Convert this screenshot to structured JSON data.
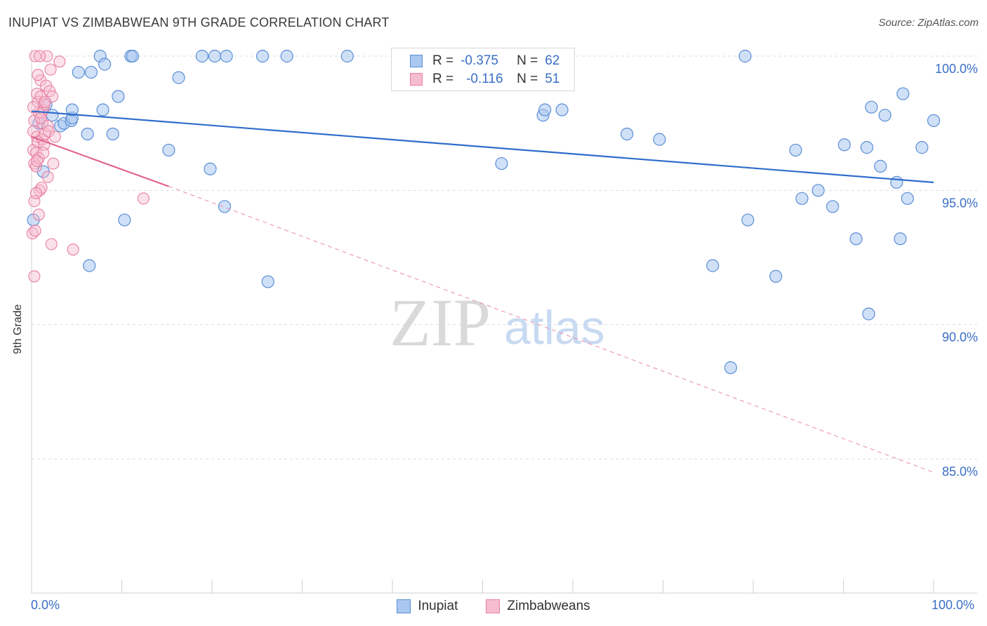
{
  "title": "INUPIAT VS ZIMBABWEAN 9TH GRADE CORRELATION CHART",
  "source": "Source: ZipAtlas.com",
  "legend_top": {
    "row1": {
      "r_label": "R =",
      "r_value": "-0.375",
      "n_label": "N =",
      "n_value": "62"
    },
    "row2": {
      "r_label": "R =",
      "r_value": "-0.116",
      "n_label": "N =",
      "n_value": "51"
    }
  },
  "legend_bottom": {
    "series1": "Inupiat",
    "series2": "Zimbabweans"
  },
  "x_tick_left": "0.0%",
  "x_tick_right": "100.0%",
  "colors": {
    "blue": "#5b8fd6",
    "blue_fill": "#a9c7f0",
    "pink": "#e87fa3",
    "pink_fill": "#f6bccf",
    "axis_text": "#3a6fc6"
  },
  "chart_data": {
    "type": "scatter",
    "title": "INUPIAT VS ZIMBABWEAN 9TH GRADE CORRELATION CHART",
    "ylabel": "9th Grade",
    "xlabel": "",
    "xlim": [
      0,
      100
    ],
    "ylim": [
      80.5,
      101.5
    ],
    "y_ticks": [
      {
        "value": 100,
        "label": "100.0%"
      },
      {
        "value": 95,
        "label": "95.0%"
      },
      {
        "value": 90,
        "label": "90.0%"
      },
      {
        "value": 85,
        "label": "85.0%"
      }
    ],
    "series": [
      {
        "name": "Inupiat",
        "r": -0.375,
        "n": 62,
        "trend": {
          "x0": 0,
          "y0": 97.95,
          "x1": 100,
          "y1": 95.3
        },
        "points": [
          [
            0.2,
            93.9
          ],
          [
            0.8,
            97.5
          ],
          [
            1.3,
            95.7
          ],
          [
            1.6,
            98.2
          ],
          [
            2.3,
            97.8
          ],
          [
            3.2,
            97.4
          ],
          [
            3.6,
            97.5
          ],
          [
            4.4,
            97.6
          ],
          [
            4.5,
            97.7
          ],
          [
            4.5,
            98.0
          ],
          [
            5.2,
            99.4
          ],
          [
            6.2,
            97.1
          ],
          [
            6.4,
            92.2
          ],
          [
            6.6,
            99.4
          ],
          [
            7.6,
            100.0
          ],
          [
            7.9,
            98.0
          ],
          [
            8.1,
            99.7
          ],
          [
            9.0,
            97.1
          ],
          [
            9.6,
            98.5
          ],
          [
            10.3,
            93.9
          ],
          [
            11.0,
            100.0
          ],
          [
            11.2,
            100.0
          ],
          [
            15.2,
            96.5
          ],
          [
            16.3,
            99.2
          ],
          [
            18.9,
            100.0
          ],
          [
            19.8,
            95.8
          ],
          [
            20.3,
            100.0
          ],
          [
            21.4,
            94.4
          ],
          [
            21.6,
            100.0
          ],
          [
            25.6,
            100.0
          ],
          [
            26.2,
            91.6
          ],
          [
            28.3,
            100.0
          ],
          [
            35.0,
            100.0
          ],
          [
            47.2,
            100.0
          ],
          [
            52.1,
            96.0
          ],
          [
            56.7,
            97.8
          ],
          [
            56.9,
            98.0
          ],
          [
            58.8,
            98.0
          ],
          [
            66.0,
            97.1
          ],
          [
            69.6,
            96.9
          ],
          [
            75.5,
            92.2
          ],
          [
            79.1,
            100.0
          ],
          [
            79.4,
            93.9
          ],
          [
            82.5,
            91.8
          ],
          [
            84.7,
            96.5
          ],
          [
            85.4,
            94.7
          ],
          [
            87.2,
            95.0
          ],
          [
            88.8,
            94.4
          ],
          [
            90.1,
            96.7
          ],
          [
            91.4,
            93.2
          ],
          [
            92.6,
            96.6
          ],
          [
            92.8,
            90.4
          ],
          [
            93.1,
            98.1
          ],
          [
            94.1,
            95.9
          ],
          [
            94.6,
            97.8
          ],
          [
            95.9,
            95.3
          ],
          [
            96.3,
            93.2
          ],
          [
            96.6,
            98.6
          ],
          [
            97.1,
            94.7
          ],
          [
            98.7,
            96.6
          ],
          [
            100.0,
            97.6
          ],
          [
            77.5,
            88.4
          ]
        ]
      },
      {
        "name": "Zimbabweans",
        "r": -0.116,
        "n": 51,
        "trend": {
          "x0": 0,
          "y0": 97.0,
          "x1": 15.2,
          "y1": 95.15
        },
        "trend_ext": {
          "x0": 15.2,
          "y0": 95.15,
          "x1": 100,
          "y1": 84.5
        },
        "points": [
          [
            0.1,
            93.4
          ],
          [
            0.2,
            96.5
          ],
          [
            0.2,
            97.2
          ],
          [
            0.3,
            96.0
          ],
          [
            0.3,
            94.6
          ],
          [
            0.3,
            91.8
          ],
          [
            0.4,
            93.5
          ],
          [
            0.5,
            95.9
          ],
          [
            0.5,
            96.4
          ],
          [
            0.6,
            97.0
          ],
          [
            0.6,
            98.6
          ],
          [
            0.7,
            98.3
          ],
          [
            0.7,
            96.8
          ],
          [
            0.8,
            96.2
          ],
          [
            0.8,
            94.1
          ],
          [
            0.9,
            95.0
          ],
          [
            1.0,
            99.1
          ],
          [
            1.0,
            98.5
          ],
          [
            1.1,
            97.9
          ],
          [
            1.2,
            97.5
          ],
          [
            1.2,
            96.9
          ],
          [
            1.3,
            98.0
          ],
          [
            1.4,
            98.2
          ],
          [
            1.4,
            96.7
          ],
          [
            1.5,
            97.1
          ],
          [
            1.6,
            98.9
          ],
          [
            1.7,
            100.0
          ],
          [
            1.8,
            95.5
          ],
          [
            1.8,
            97.4
          ],
          [
            2.0,
            98.7
          ],
          [
            2.1,
            99.5
          ],
          [
            2.2,
            93.0
          ],
          [
            2.3,
            98.5
          ],
          [
            2.4,
            96.0
          ],
          [
            3.1,
            99.8
          ],
          [
            4.6,
            92.8
          ],
          [
            12.4,
            94.7
          ],
          [
            0.4,
            100.0
          ],
          [
            0.9,
            100.0
          ],
          [
            1.5,
            98.3
          ],
          [
            0.6,
            96.1
          ],
          [
            1.1,
            95.1
          ],
          [
            0.3,
            97.6
          ],
          [
            0.8,
            97.9
          ],
          [
            1.9,
            97.2
          ],
          [
            0.5,
            94.9
          ],
          [
            1.3,
            96.4
          ],
          [
            0.2,
            98.1
          ],
          [
            0.7,
            99.3
          ],
          [
            2.6,
            97.0
          ],
          [
            1.0,
            97.7
          ]
        ]
      }
    ]
  }
}
